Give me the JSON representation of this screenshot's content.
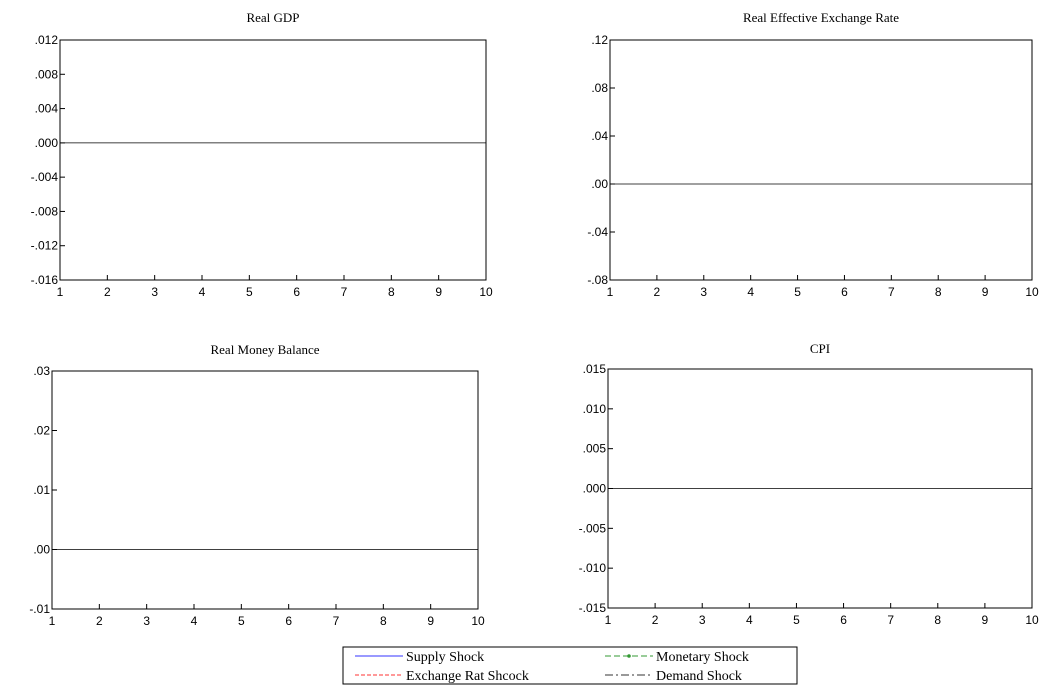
{
  "chart_data": [
    {
      "type": "line",
      "title": "Real GDP",
      "x": [
        1,
        2,
        3,
        4,
        5,
        6,
        7,
        8,
        9,
        10
      ],
      "xticks": [
        "1",
        "2",
        "3",
        "4",
        "5",
        "6",
        "7",
        "8",
        "9",
        "10"
      ],
      "yticks": [
        ".012",
        ".008",
        ".004",
        ".000",
        "-.004",
        "-.008",
        "-.012",
        "-.016"
      ],
      "ytick_values": [
        0.012,
        0.008,
        0.004,
        0.0,
        -0.004,
        -0.008,
        -0.012,
        -0.016
      ],
      "ylim": [
        -0.016,
        0.012
      ],
      "zero_line": 0.0,
      "series": []
    },
    {
      "type": "line",
      "title": "Real Effective Exchange Rate",
      "x": [
        1,
        2,
        3,
        4,
        5,
        6,
        7,
        8,
        9,
        10
      ],
      "xticks": [
        "1",
        "2",
        "3",
        "4",
        "5",
        "6",
        "7",
        "8",
        "9",
        "10"
      ],
      "yticks": [
        ".12",
        ".08",
        ".04",
        ".00",
        "-.04",
        "-.08"
      ],
      "ytick_values": [
        0.12,
        0.08,
        0.04,
        0.0,
        -0.04,
        -0.08
      ],
      "ylim": [
        -0.08,
        0.12
      ],
      "zero_line": 0.0,
      "series": []
    },
    {
      "type": "line",
      "title": "Real Money Balance",
      "x": [
        1,
        2,
        3,
        4,
        5,
        6,
        7,
        8,
        9,
        10
      ],
      "xticks": [
        "1",
        "2",
        "3",
        "4",
        "5",
        "6",
        "7",
        "8",
        "9",
        "10"
      ],
      "yticks": [
        ".03",
        ".02",
        ".01",
        ".00",
        "-.01"
      ],
      "ytick_values": [
        0.03,
        0.02,
        0.01,
        0.0,
        -0.01
      ],
      "ylim": [
        -0.01,
        0.03
      ],
      "zero_line": 0.0,
      "series": []
    },
    {
      "type": "line",
      "title": "CPI",
      "x": [
        1,
        2,
        3,
        4,
        5,
        6,
        7,
        8,
        9,
        10
      ],
      "xticks": [
        "1",
        "2",
        "3",
        "4",
        "5",
        "6",
        "7",
        "8",
        "9",
        "10"
      ],
      "yticks": [
        ".015",
        ".010",
        ".005",
        ".000",
        "-.005",
        "-.010",
        "-.015"
      ],
      "ytick_values": [
        0.015,
        0.01,
        0.005,
        0.0,
        -0.005,
        -0.01,
        -0.015
      ],
      "ylim": [
        -0.015,
        0.015
      ],
      "zero_line": 0.0,
      "series": []
    }
  ],
  "legend": {
    "placement": "bottom-center",
    "entries": [
      {
        "name": "Supply Shock",
        "color": "#3333ff",
        "style": "solid"
      },
      {
        "name": "Monetary Shock",
        "color": "#339933",
        "style": "dash-marker"
      },
      {
        "name": "Exchange Rat Shcock",
        "color": "#ff3333",
        "style": "dashed"
      },
      {
        "name": "Demand Shock",
        "color": "#333333",
        "style": "dash-dot"
      }
    ]
  }
}
